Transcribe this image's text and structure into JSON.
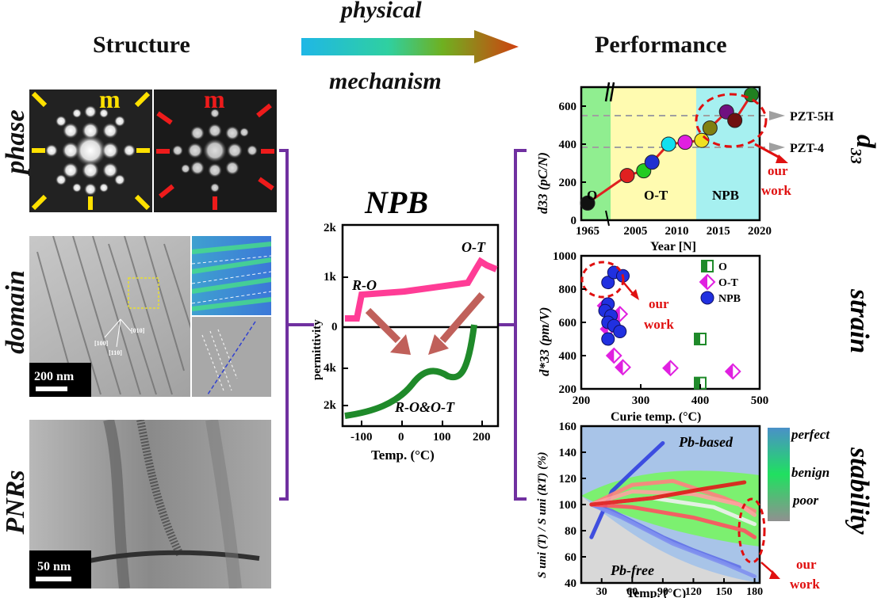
{
  "headings": {
    "structure": "Structure",
    "performance": "Performance",
    "arrow_top": "physical",
    "arrow_bottom": "mechanism"
  },
  "left_labels": {
    "phase": "phase",
    "domain": "domain",
    "pnrs": "PNRs"
  },
  "right_labels": {
    "d33": "d",
    "d33_sub": "33",
    "strain": "strain",
    "stability": "stability"
  },
  "phase_images": {
    "label_left": "m",
    "label_right": "m"
  },
  "domain_image": {
    "scale": "200 nm",
    "dirs": [
      "[100]",
      "[010]",
      "[110]"
    ]
  },
  "pnr_image": {
    "scale": "50 nm"
  },
  "colors": {
    "bracket": "#7030a0",
    "pink": "#ff3c96",
    "green": "#1f8a2a",
    "red": "#e01010",
    "arrow_brown": "#c0605a"
  },
  "npb_chart": {
    "title": "NPB",
    "ylabel": "permittivity",
    "xlabel": "Temp. (°C)",
    "x_ticks": [
      "-100",
      "0",
      "100",
      "200"
    ],
    "top_ticks": [
      "0",
      "1k",
      "2k"
    ],
    "bottom_ticks": [
      "2k",
      "4k"
    ],
    "ann_ro": "R-O",
    "ann_ot": "O-T",
    "ann_root": "R-O&O-T"
  },
  "chart_data": [
    {
      "type": "line",
      "title": "",
      "xlabel": "Year [N]",
      "ylabel": "d33 (pC/N)",
      "x_ticks": [
        "1965",
        "2005",
        "2010",
        "2015",
        "2020"
      ],
      "y_ticks": [
        "0",
        "200",
        "400",
        "600"
      ],
      "ylim": [
        0,
        700
      ],
      "regions": [
        "O",
        "O-T",
        "NPB"
      ],
      "references": [
        {
          "name": "PZT-5H",
          "value": 590
        },
        {
          "name": "PZT-4",
          "value": 420
        }
      ],
      "annotation": "our work",
      "points": [
        {
          "x": "1965",
          "y": 90,
          "color": "#111111"
        },
        {
          "x": "2004",
          "y": 235,
          "color": "#e02020"
        },
        {
          "x": "2006",
          "y": 260,
          "color": "#22cc22"
        },
        {
          "x": "2007",
          "y": 305,
          "color": "#2030d0"
        },
        {
          "x": "2009",
          "y": 400,
          "color": "#10e0f0"
        },
        {
          "x": "2011",
          "y": 410,
          "color": "#e020e0"
        },
        {
          "x": "2013",
          "y": 420,
          "color": "#f0e020"
        },
        {
          "x": "2014",
          "y": 485,
          "color": "#808010"
        },
        {
          "x": "2016",
          "y": 570,
          "color": "#701080"
        },
        {
          "x": "2017",
          "y": 525,
          "color": "#701010"
        },
        {
          "x": "2019",
          "y": 660,
          "color": "#208020"
        }
      ]
    },
    {
      "type": "scatter",
      "title": "",
      "xlabel": "Curie temp. (°C)",
      "ylabel": "d*33 (pm/V)",
      "xlim": [
        200,
        500
      ],
      "ylim": [
        200,
        1000
      ],
      "x_ticks": [
        "200",
        "300",
        "400",
        "500"
      ],
      "y_ticks": [
        "200",
        "400",
        "600",
        "800",
        "1000"
      ],
      "annotation": "our work",
      "series": [
        {
          "name": "O",
          "marker": "half-square",
          "points": [
            [
              400,
              500
            ],
            [
              400,
              235
            ]
          ]
        },
        {
          "name": "O-T",
          "marker": "half-diamond",
          "points": [
            [
              240,
              700
            ],
            [
              265,
              650
            ],
            [
              255,
              400
            ],
            [
              270,
              330
            ],
            [
              350,
              325
            ],
            [
              455,
              305
            ],
            [
              245,
              560
            ]
          ]
        },
        {
          "name": "NPB",
          "marker": "ball",
          "points": [
            [
              245,
              840
            ],
            [
              255,
              900
            ],
            [
              270,
              880
            ],
            [
              245,
              710
            ],
            [
              240,
              670
            ],
            [
              250,
              640
            ],
            [
              245,
              600
            ],
            [
              255,
              580
            ],
            [
              265,
              545
            ],
            [
              245,
              500
            ]
          ]
        }
      ]
    },
    {
      "type": "line",
      "title": "",
      "xlabel": "Temp. (°C)",
      "ylabel": "S uni (T) / S uni (RT) (%)",
      "xlim": [
        10,
        185
      ],
      "ylim": [
        40,
        160
      ],
      "x_ticks": [
        "30",
        "60",
        "90",
        "120",
        "150",
        "180"
      ],
      "y_ticks": [
        "40",
        "60",
        "80",
        "100",
        "120",
        "140",
        "160"
      ],
      "regions": [
        "Pb-based",
        "Pb-free"
      ],
      "legend": [
        "perfect",
        "benign",
        "poor"
      ],
      "annotation": "our work"
    }
  ]
}
